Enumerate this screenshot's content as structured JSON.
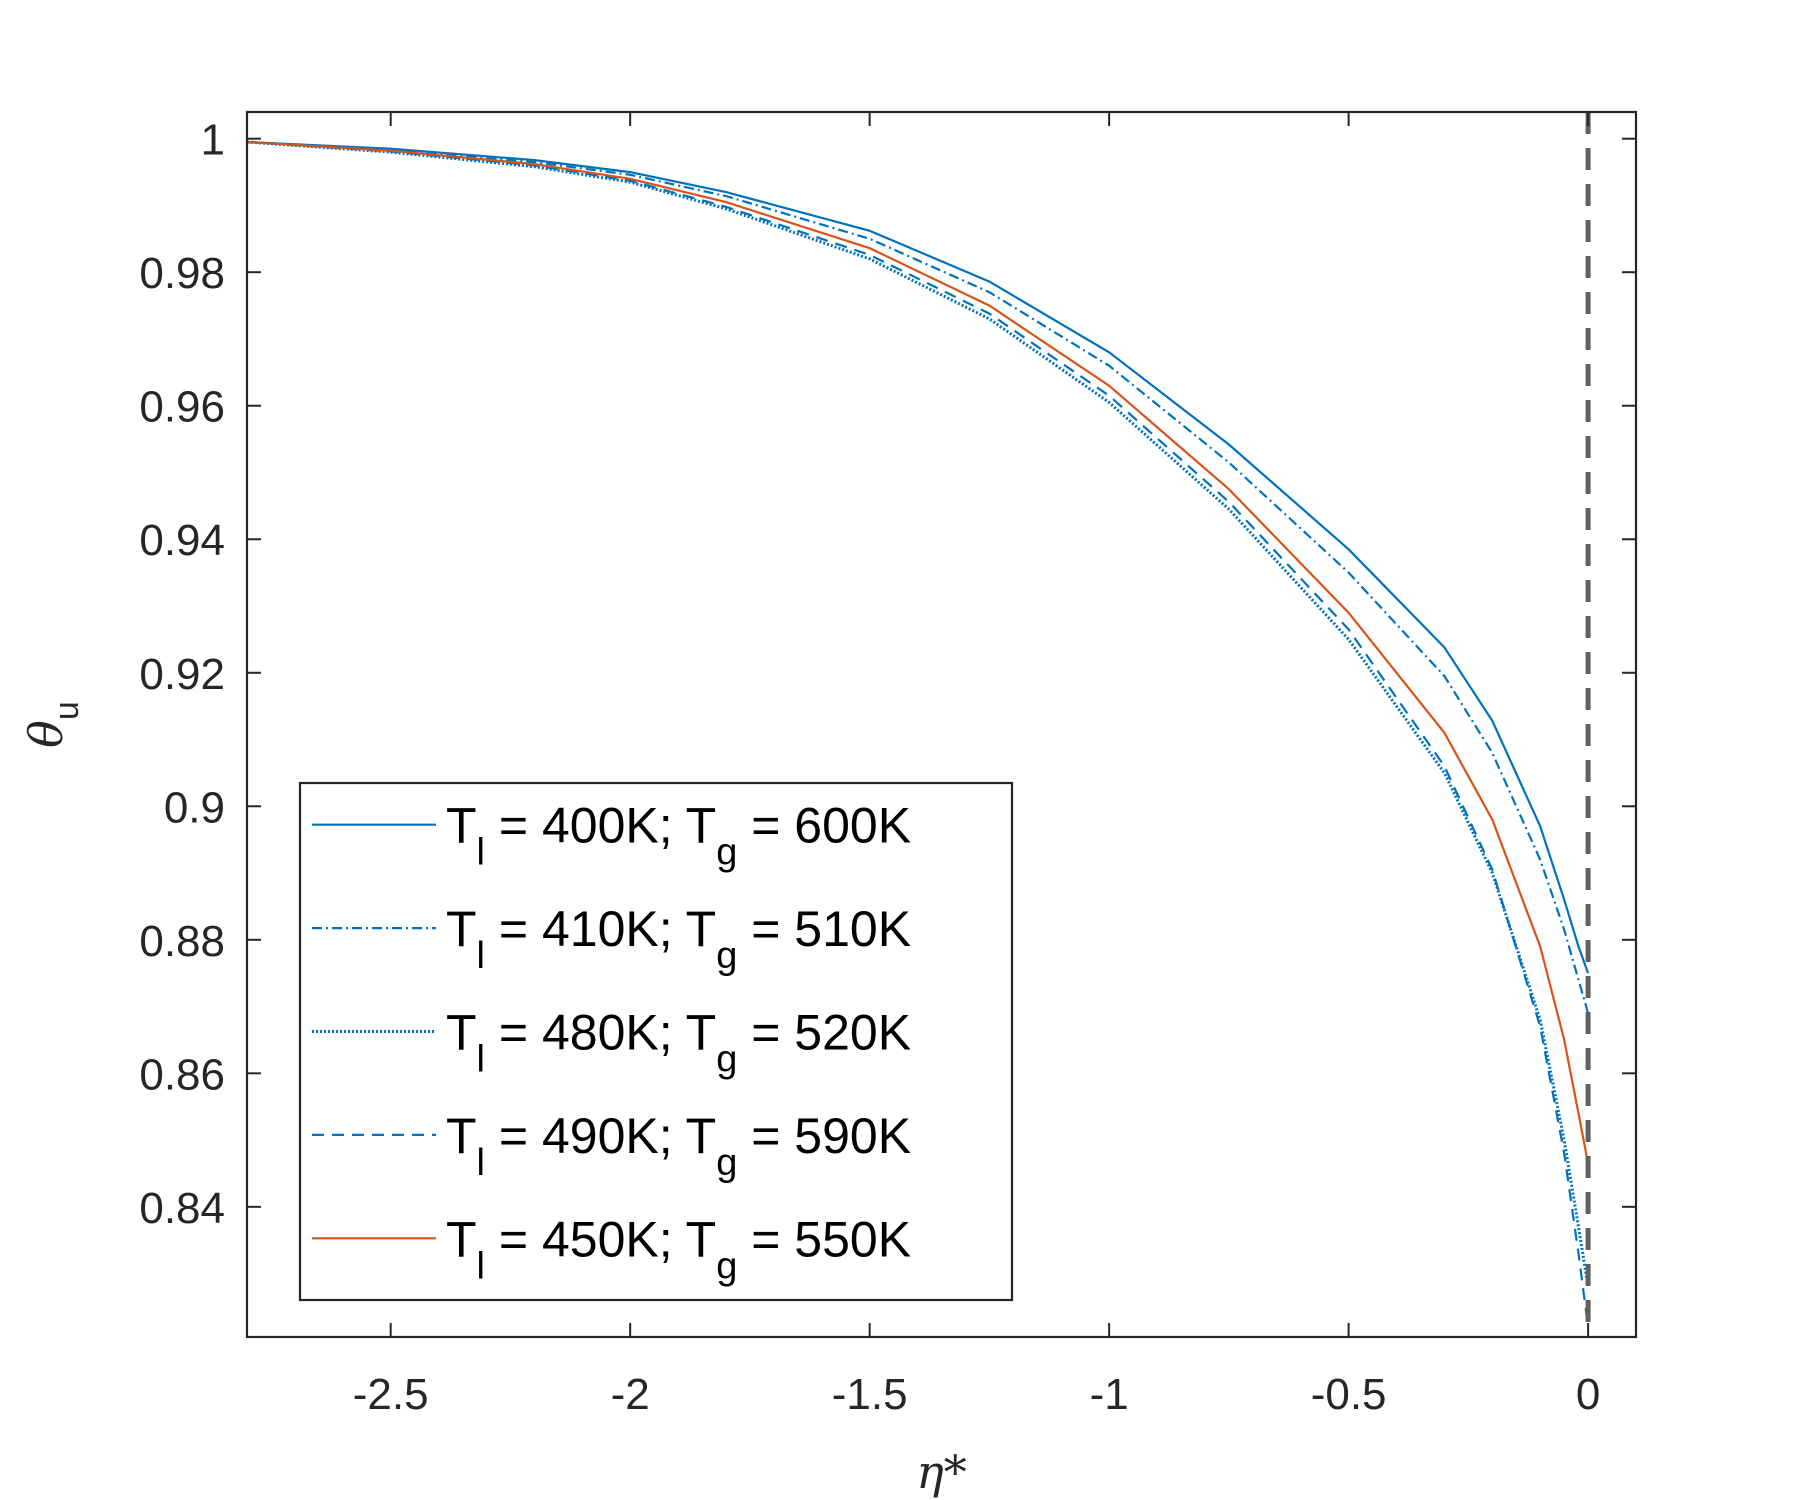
{
  "chart_data": {
    "type": "line",
    "title": "",
    "xlabel": "η*",
    "ylabel": "θu",
    "xlim": [
      -2.8,
      0.1
    ],
    "ylim": [
      0.8205,
      1.004
    ],
    "x_ticks": [
      -2.5,
      -2,
      -1.5,
      -1,
      -0.5,
      0
    ],
    "x_tick_labels": [
      "-2.5",
      "-2",
      "-1.5",
      "-1",
      "-0.5",
      "0"
    ],
    "y_ticks": [
      0.84,
      0.86,
      0.88,
      0.9,
      0.92,
      0.94,
      0.96,
      0.98,
      1
    ],
    "y_tick_labels": [
      "0.84",
      "0.86",
      "0.88",
      "0.9",
      "0.92",
      "0.94",
      "0.96",
      "0.98",
      "1"
    ],
    "grid": false,
    "legend_position": "bottom-left",
    "reference_line": {
      "x": 0,
      "style": "dashed",
      "color": "#606060"
    },
    "series": [
      {
        "name": "T_l = 400K; T_g = 600K",
        "legend": {
          "T": "T",
          "sub1": "l",
          "mid": " = 400K; T",
          "sub2": "g",
          "tail": " = 600K"
        },
        "color": "#0072BD",
        "dash": "solid",
        "points": [
          [
            -2.8,
            0.9995
          ],
          [
            -2.5,
            0.9985
          ],
          [
            -2.2,
            0.9968
          ],
          [
            -2.0,
            0.995
          ],
          [
            -1.8,
            0.992
          ],
          [
            -1.5,
            0.9862
          ],
          [
            -1.25,
            0.9786
          ],
          [
            -1.0,
            0.968
          ],
          [
            -0.75,
            0.9542
          ],
          [
            -0.5,
            0.9385
          ],
          [
            -0.3,
            0.9238
          ],
          [
            -0.2,
            0.9128
          ],
          [
            -0.1,
            0.897
          ],
          [
            -0.05,
            0.886
          ],
          [
            -0.02,
            0.879
          ],
          [
            0.0,
            0.875
          ]
        ]
      },
      {
        "name": "T_l = 410K; T_g = 510K",
        "legend": {
          "T": "T",
          "sub1": "l",
          "mid": " = 410K; T",
          "sub2": "g",
          "tail": " = 510K"
        },
        "color": "#0072BD",
        "dash": "dashdot",
        "points": [
          [
            -2.8,
            0.9995
          ],
          [
            -2.5,
            0.9984
          ],
          [
            -2.2,
            0.9965
          ],
          [
            -2.0,
            0.9946
          ],
          [
            -1.8,
            0.9914
          ],
          [
            -1.5,
            0.985
          ],
          [
            -1.25,
            0.977
          ],
          [
            -1.0,
            0.966
          ],
          [
            -0.75,
            0.9515
          ],
          [
            -0.5,
            0.935
          ],
          [
            -0.3,
            0.9195
          ],
          [
            -0.2,
            0.908
          ],
          [
            -0.1,
            0.892
          ],
          [
            -0.05,
            0.8815
          ],
          [
            -0.02,
            0.874
          ],
          [
            0.0,
            0.869
          ]
        ]
      },
      {
        "name": "T_l = 480K; T_g = 520K",
        "legend": {
          "T": "T",
          "sub1": "l",
          "mid": " = 480K; T",
          "sub2": "g",
          "tail": " = 520K"
        },
        "color": "#0072BD",
        "dash": "dotted",
        "points": [
          [
            -2.8,
            0.9995
          ],
          [
            -2.5,
            0.998
          ],
          [
            -2.2,
            0.9958
          ],
          [
            -2.0,
            0.9935
          ],
          [
            -1.8,
            0.9895
          ],
          [
            -1.5,
            0.982
          ],
          [
            -1.25,
            0.973
          ],
          [
            -1.0,
            0.9605
          ],
          [
            -0.75,
            0.9445
          ],
          [
            -0.5,
            0.925
          ],
          [
            -0.3,
            0.905
          ],
          [
            -0.2,
            0.89
          ],
          [
            -0.1,
            0.868
          ],
          [
            -0.05,
            0.85
          ],
          [
            -0.02,
            0.837
          ],
          [
            0.0,
            0.828
          ]
        ]
      },
      {
        "name": "T_l = 490K; T_g = 590K",
        "legend": {
          "T": "T",
          "sub1": "l",
          "mid": " = 490K; T",
          "sub2": "g",
          "tail": " = 590K"
        },
        "color": "#0072BD",
        "dash": "dashed",
        "points": [
          [
            -2.8,
            0.9995
          ],
          [
            -2.5,
            0.9981
          ],
          [
            -2.2,
            0.996
          ],
          [
            -2.0,
            0.9937
          ],
          [
            -1.8,
            0.9898
          ],
          [
            -1.5,
            0.9826
          ],
          [
            -1.25,
            0.9738
          ],
          [
            -1.0,
            0.9615
          ],
          [
            -0.75,
            0.9456
          ],
          [
            -0.5,
            0.9265
          ],
          [
            -0.3,
            0.906
          ],
          [
            -0.2,
            0.8905
          ],
          [
            -0.1,
            0.867
          ],
          [
            -0.05,
            0.848
          ],
          [
            -0.02,
            0.833
          ],
          [
            0.0,
            0.822
          ]
        ]
      },
      {
        "name": "T_l = 450K; T_g = 550K",
        "legend": {
          "T": "T",
          "sub1": "l",
          "mid": " = 450K; T",
          "sub2": "g",
          "tail": " = 550K"
        },
        "color": "#D95319",
        "dash": "solid",
        "points": [
          [
            -2.8,
            0.9995
          ],
          [
            -2.5,
            0.9982
          ],
          [
            -2.2,
            0.9962
          ],
          [
            -2.0,
            0.994
          ],
          [
            -1.8,
            0.9905
          ],
          [
            -1.5,
            0.9836
          ],
          [
            -1.25,
            0.975
          ],
          [
            -1.0,
            0.963
          ],
          [
            -0.75,
            0.9475
          ],
          [
            -0.5,
            0.929
          ],
          [
            -0.3,
            0.911
          ],
          [
            -0.2,
            0.898
          ],
          [
            -0.1,
            0.879
          ],
          [
            -0.05,
            0.865
          ],
          [
            -0.02,
            0.854
          ],
          [
            0.0,
            0.8465
          ]
        ]
      }
    ]
  }
}
